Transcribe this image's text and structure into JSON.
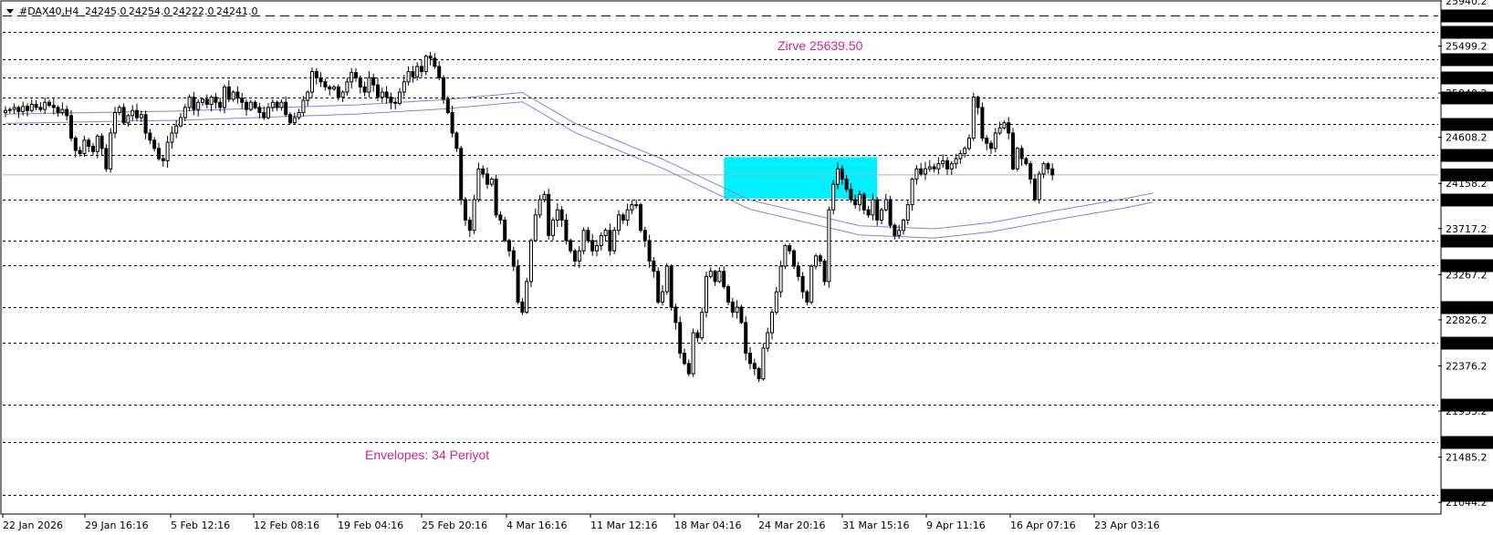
{
  "header": {
    "symbol": "#DAX40,H4",
    "open": "24245.0",
    "high": "24254.0",
    "low": "24222.0",
    "close": "24241.0"
  },
  "colors": {
    "background": "#ffffff",
    "candle": "#000000",
    "envelope": "#8a7fe0",
    "zone": "#00f0ff",
    "annotation": "#d6208c",
    "level_line": "#000000",
    "current_line": "#b0b0b0"
  },
  "annotations": {
    "top": "Zirve 25639.50",
    "bottom": "Envelopes: 34 Periyot"
  },
  "chart_data": {
    "type": "candlestick",
    "title": "",
    "xlabel": "",
    "ylabel": "",
    "ylim": [
      20930,
      25940
    ],
    "grid": false,
    "x_ticks": [
      "22 Jan 2026",
      "29 Jan 16:16",
      "5 Feb 12:16",
      "12 Feb 08:16",
      "19 Feb 04:16",
      "25 Feb 20:16",
      "4 Mar 16:16",
      "11 Mar 12:16",
      "18 Mar 04:16",
      "24 Mar 20:16",
      "31 Mar 15:16",
      "9 Apr 11:16",
      "16 Apr 07:16",
      "23 Apr 03:16"
    ],
    "y_tick_labels": [
      "25940.2",
      "25499.2",
      "25040.2",
      "24608.2",
      "24158.2",
      "23717.2",
      "23267.2",
      "22826.2",
      "22376.2",
      "21935.2",
      "21485.2",
      "21044.2"
    ],
    "levels": [
      {
        "value": 25800.0,
        "label": "25800.0",
        "style": "long-dash"
      },
      {
        "value": 25639.5,
        "label": "25639.5",
        "style": "dotted"
      },
      {
        "value": 25370.0,
        "label": "25370.0",
        "style": "dotted"
      },
      {
        "value": 25190.0,
        "label": "25190.0",
        "style": "dotted"
      },
      {
        "value": 25000.0,
        "label": "25000.0",
        "style": "dotted"
      },
      {
        "value": 24740.0,
        "label": "24740.0",
        "style": "dotted"
      },
      {
        "value": 24435.0,
        "label": "24435.0",
        "style": "dotted"
      },
      {
        "value": 24000.0,
        "label": "24000.0",
        "style": "dotted"
      },
      {
        "value": 23600.0,
        "label": "23600.0",
        "style": "dotted"
      },
      {
        "value": 23360.0,
        "label": "23360.0",
        "style": "dotted"
      },
      {
        "value": 22950.0,
        "label": "22950.0",
        "style": "dotted"
      },
      {
        "value": 22600.0,
        "label": "22600.0",
        "style": "dotted"
      },
      {
        "value": 22000.0,
        "label": "22000.0",
        "style": "dotted"
      },
      {
        "value": 21630.0,
        "label": "21630.0",
        "style": "dotted"
      },
      {
        "value": 21120.0,
        "label": "21120.0",
        "style": "dotted"
      }
    ],
    "current_price": {
      "value": 24241.0,
      "label": "24241.0"
    },
    "zone": {
      "from_index": 164,
      "to_index": 199,
      "low": 24010,
      "high": 24415
    },
    "series": [
      {
        "kind": "close",
        "closes": [
          24870,
          24880,
          24900,
          24860,
          24910,
          24870,
          24930,
          24900,
          24880,
          24950,
          24920,
          24900,
          24850,
          24880,
          24820,
          24600,
          24480,
          24450,
          24580,
          24520,
          24470,
          24620,
          24500,
          24300,
          24650,
          24850,
          24900,
          24750,
          24820,
          24870,
          24800,
          24830,
          24650,
          24580,
          24500,
          24400,
          24380,
          24560,
          24650,
          24720,
          24800,
          24900,
          25000,
          24880,
          24950,
          24980,
          24930,
          25000,
          24950,
          24900,
          25100,
          24980,
          25050,
          24990,
          24950,
          24880,
          24950,
          24900,
          24850,
          24800,
          24900,
          24950,
          24900,
          24950,
          24830,
          24750,
          24800,
          24850,
          24970,
          25050,
          25250,
          25190,
          25150,
          25100,
          25080,
          25100,
          25000,
          25050,
          25150,
          25240,
          25190,
          25100,
          25050,
          25190,
          25120,
          25000,
          25050,
          25000,
          24950,
          24940,
          25050,
          25150,
          25250,
          25200,
          25300,
          25250,
          25400,
          25380,
          25300,
          25190,
          24980,
          24850,
          24650,
          24500,
          24000,
          23800,
          23700,
          24000,
          24300,
          24250,
          24150,
          24200,
          23850,
          23800,
          23600,
          23500,
          23350,
          23000,
          22900,
          23200,
          23600,
          23850,
          24000,
          24050,
          23650,
          23800,
          23900,
          23800,
          23600,
          23500,
          23400,
          23500,
          23700,
          23600,
          23500,
          23550,
          23650,
          23700,
          23500,
          23700,
          23850,
          23800,
          23900,
          23950,
          23950,
          23700,
          23600,
          23400,
          23300,
          23000,
          23100,
          23350,
          22950,
          22800,
          22500,
          22400,
          22300,
          22700,
          22650,
          22900,
          23250,
          23300,
          23200,
          23300,
          23150,
          23000,
          22900,
          22950,
          22800,
          22500,
          22400,
          22350,
          22250,
          22550,
          22700,
          22900,
          23100,
          23350,
          23550,
          23500,
          23350,
          23250,
          23100,
          23000,
          23350,
          23450,
          23400,
          23200,
          23900,
          24150,
          24300,
          24200,
          24100,
          24000,
          23950,
          24050,
          23900,
          23850,
          24000,
          23800,
          23900,
          24000,
          23750,
          23650,
          23700,
          23800,
          23950,
          24200,
          24300,
          24250,
          24300,
          24320,
          24300,
          24350,
          24380,
          24300,
          24350,
          24400,
          24450,
          24500,
          24600,
          25000,
          24900,
          24600,
          24550,
          24500,
          24650,
          24700,
          24750,
          24650,
          24300,
          24500,
          24400,
          24350,
          24200,
          24000,
          24250,
          24350,
          24300,
          24241
        ]
      },
      {
        "kind": "envelope",
        "name": "",
        "points": [
          [
            0,
            24790
          ],
          [
            40,
            24820
          ],
          [
            80,
            24880
          ],
          [
            100,
            24930
          ],
          [
            118,
            25000
          ],
          [
            130,
            24700
          ],
          [
            150,
            24350
          ],
          [
            170,
            23950
          ],
          [
            195,
            23700
          ],
          [
            212,
            23670
          ],
          [
            225,
            23730
          ],
          [
            240,
            23850
          ],
          [
            255,
            23960
          ],
          [
            262,
            24020
          ]
        ]
      }
    ]
  }
}
